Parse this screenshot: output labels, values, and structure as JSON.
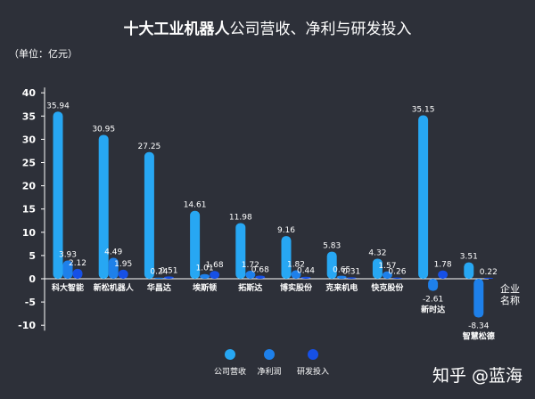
{
  "title_bold": "十大工业机器人",
  "title_rest": "公司营收、净利与研发投入",
  "unit_label": "（单位：亿元）",
  "watermark": "知乎 @蓝海",
  "chart_data": {
    "type": "bar",
    "categories": [
      "科大智能",
      "新松机器人",
      "华昌达",
      "埃斯顿",
      "拓斯达",
      "博实股份",
      "克来机电",
      "快克股份",
      "新时达",
      "智慧松德"
    ],
    "series": [
      {
        "name": "公司营收",
        "color": "#27a7f3",
        "values": [
          35.94,
          30.95,
          27.25,
          14.61,
          11.98,
          9.16,
          5.83,
          4.32,
          35.15,
          3.51
        ]
      },
      {
        "name": "净利润",
        "color": "#1e80ea",
        "values": [
          3.93,
          4.49,
          0.24,
          1.01,
          1.72,
          1.82,
          0.65,
          1.57,
          -2.61,
          -8.34
        ]
      },
      {
        "name": "研发投入",
        "color": "#1650e6",
        "values": [
          2.12,
          1.95,
          0.51,
          1.68,
          0.68,
          0.44,
          0.31,
          0.26,
          1.78,
          0.22
        ]
      }
    ],
    "value_labels": [
      [
        "35.94",
        "30.95",
        "27.25",
        "14.61",
        "11.98",
        "9.16",
        "5.83",
        "4.32",
        "35.15",
        "3.51"
      ],
      [
        "3.93",
        "4.49",
        "0.24",
        "1.01",
        "1.72",
        "1.82",
        "0.65",
        "1.57",
        "-2.61",
        "-8.34"
      ],
      [
        "2.12",
        "1.95",
        "0.51",
        "1.68",
        "0.68",
        "0.44",
        "0.31",
        "0.26",
        "1.78",
        "0.22"
      ]
    ],
    "yticks": [
      -10,
      -5,
      0,
      5,
      10,
      15,
      20,
      25,
      30,
      35,
      40
    ],
    "ylim": [
      -10,
      40
    ],
    "xlabel_lines": [
      "企业",
      "名称"
    ],
    "legend_position": "bottom",
    "grid": false
  }
}
